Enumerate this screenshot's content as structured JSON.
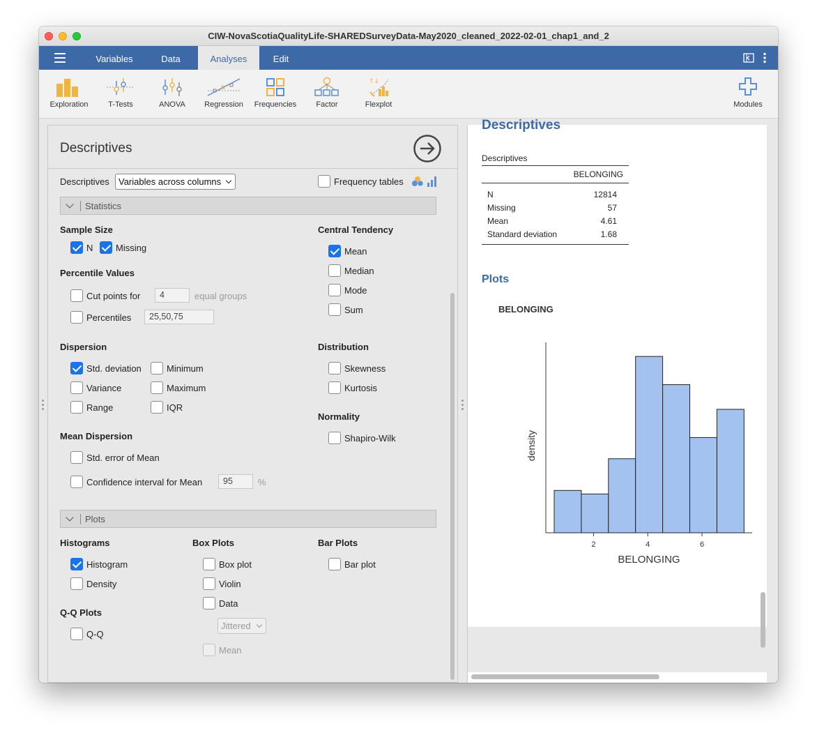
{
  "window": {
    "title": "CIW-NovaScotiaQualityLife-SHAREDSurveyData-May2020_cleaned_2022-02-01_chap1_and_2"
  },
  "menu": {
    "tabs": [
      "Variables",
      "Data",
      "Analyses",
      "Edit"
    ],
    "active": "Analyses"
  },
  "ribbon": {
    "items": [
      {
        "label": "Exploration",
        "icon": "exploration-icon"
      },
      {
        "label": "T-Tests",
        "icon": "t-tests-icon"
      },
      {
        "label": "ANOVA",
        "icon": "anova-icon"
      },
      {
        "label": "Regression",
        "icon": "regression-icon"
      },
      {
        "label": "Frequencies",
        "icon": "frequencies-icon"
      },
      {
        "label": "Factor",
        "icon": "factor-icon"
      },
      {
        "label": "Flexplot",
        "icon": "flexplot-icon"
      }
    ],
    "modules_label": "Modules"
  },
  "options": {
    "title": "Descriptives",
    "layout_label": "Descriptives",
    "layout_value": "Variables across columns",
    "freq_tables": "Frequency tables",
    "statistics_section": "Statistics",
    "sample_size": {
      "heading": "Sample Size",
      "n": "N",
      "missing": "Missing"
    },
    "percentile": {
      "heading": "Percentile Values",
      "cut_points": "Cut points for",
      "cut_value": "4",
      "equal_groups": "equal groups",
      "percentiles": "Percentiles",
      "percentiles_value": "25,50,75"
    },
    "central": {
      "heading": "Central Tendency",
      "mean": "Mean",
      "median": "Median",
      "mode": "Mode",
      "sum": "Sum"
    },
    "dispersion": {
      "heading": "Dispersion",
      "std": "Std. deviation",
      "minimum": "Minimum",
      "variance": "Variance",
      "maximum": "Maximum",
      "range": "Range",
      "iqr": "IQR"
    },
    "distribution": {
      "heading": "Distribution",
      "skewness": "Skewness",
      "kurtosis": "Kurtosis"
    },
    "normality": {
      "heading": "Normality",
      "shapiro": "Shapiro-Wilk"
    },
    "mean_dispersion": {
      "heading": "Mean Dispersion",
      "se": "Std. error of Mean",
      "ci": "Confidence interval for Mean",
      "ci_value": "95",
      "pct": "%"
    },
    "plots_section": "Plots",
    "histograms": {
      "heading": "Histograms",
      "histogram": "Histogram",
      "density": "Density"
    },
    "boxplots": {
      "heading": "Box Plots",
      "boxplot": "Box plot",
      "violin": "Violin",
      "data": "Data",
      "jitter": "Jittered",
      "mean": "Mean"
    },
    "barplots": {
      "heading": "Bar Plots",
      "barplot": "Bar plot"
    },
    "qq": {
      "heading": "Q-Q Plots",
      "qq": "Q-Q"
    }
  },
  "results": {
    "heading": "Descriptives",
    "table_title": "Descriptives",
    "column": "BELONGING",
    "rows": [
      {
        "label": "N",
        "value": "12814"
      },
      {
        "label": "Missing",
        "value": "57"
      },
      {
        "label": "Mean",
        "value": "4.61"
      },
      {
        "label": "Standard deviation",
        "value": "1.68"
      }
    ],
    "plots_heading": "Plots",
    "plot_title": "BELONGING"
  },
  "chart_data": {
    "type": "bar",
    "title": "BELONGING",
    "xlabel": "BELONGING",
    "ylabel": "density",
    "x_ticks": [
      2,
      4,
      6
    ],
    "bin_edges": [
      0.55,
      1.55,
      2.55,
      3.55,
      4.55,
      5.55,
      6.55,
      7.55
    ],
    "values": [
      0.12,
      0.11,
      0.21,
      0.5,
      0.42,
      0.27,
      0.35
    ],
    "bar_color": "#a4c2f0"
  }
}
